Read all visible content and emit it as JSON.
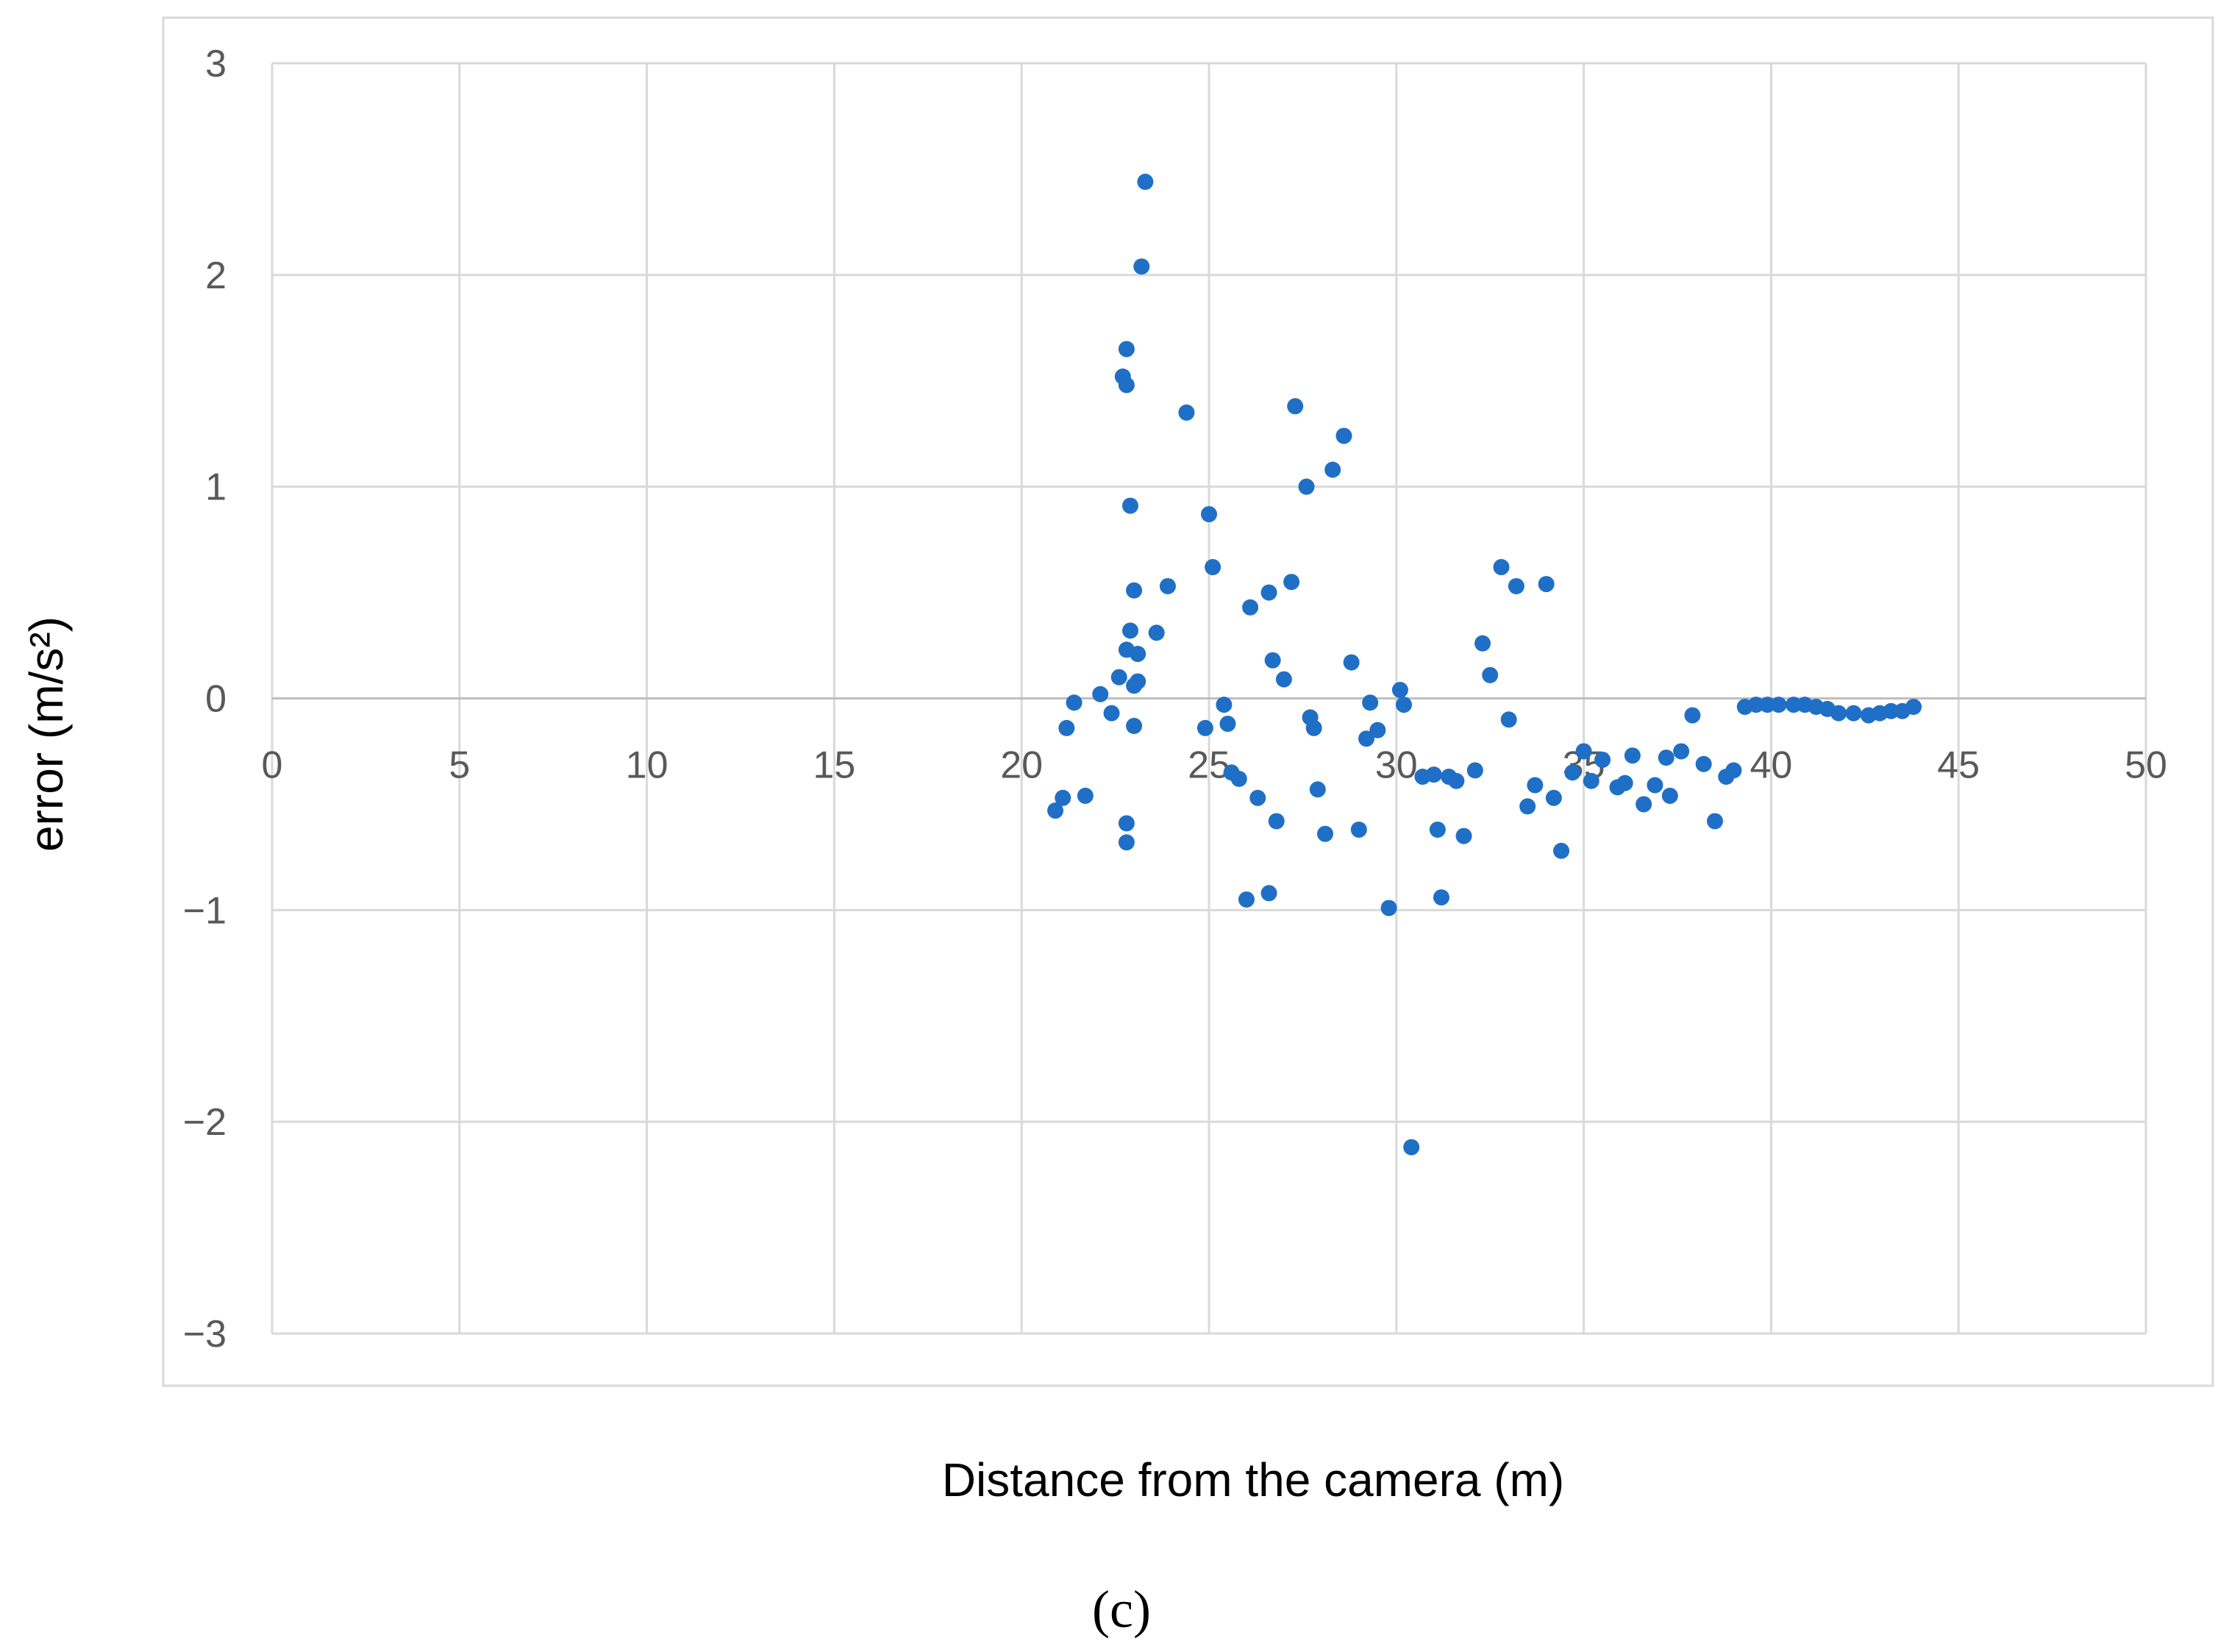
{
  "chart_data": {
    "type": "scatter",
    "xlabel": "Distance from the camera (m)",
    "ylabel": "error (m/s²)",
    "xlim": [
      0,
      50
    ],
    "ylim": [
      -3,
      3
    ],
    "x_ticks": [
      0,
      5,
      10,
      15,
      20,
      25,
      30,
      35,
      40,
      45,
      50
    ],
    "y_ticks": [
      3,
      2,
      1,
      0,
      -1,
      -2,
      -3
    ],
    "y_tick_labels": [
      "3",
      "2",
      "1",
      "0",
      "−1",
      "−2",
      "−3"
    ],
    "grid": true,
    "marker_color": "#1f6fc6",
    "series": [
      {
        "points": [
          [
            20.9,
            -0.53
          ],
          [
            21.1,
            -0.47
          ],
          [
            21.2,
            -0.14
          ],
          [
            21.4,
            -0.02
          ],
          [
            21.7,
            -0.46
          ],
          [
            22.1,
            0.02
          ],
          [
            22.4,
            -0.07
          ],
          [
            22.6,
            0.1
          ],
          [
            22.7,
            1.52
          ],
          [
            22.8,
            1.48
          ],
          [
            22.8,
            1.65
          ],
          [
            22.8,
            0.23
          ],
          [
            22.8,
            -0.59
          ],
          [
            22.8,
            -0.68
          ],
          [
            22.9,
            0.32
          ],
          [
            22.9,
            0.91
          ],
          [
            23.0,
            0.51
          ],
          [
            23.0,
            0.06
          ],
          [
            23.0,
            -0.13
          ],
          [
            23.1,
            0.08
          ],
          [
            23.1,
            0.21
          ],
          [
            23.2,
            2.04
          ],
          [
            23.3,
            2.44
          ],
          [
            23.6,
            0.31
          ],
          [
            23.9,
            0.53
          ],
          [
            24.4,
            1.35
          ],
          [
            24.9,
            -0.14
          ],
          [
            25.0,
            0.87
          ],
          [
            25.1,
            0.62
          ],
          [
            25.4,
            -0.03
          ],
          [
            25.5,
            -0.12
          ],
          [
            25.6,
            -0.35
          ],
          [
            25.8,
            -0.38
          ],
          [
            26.0,
            -0.95
          ],
          [
            26.1,
            0.43
          ],
          [
            26.3,
            -0.47
          ],
          [
            26.6,
            -0.92
          ],
          [
            26.6,
            0.5
          ],
          [
            26.7,
            0.18
          ],
          [
            26.8,
            -0.58
          ],
          [
            27.0,
            0.09
          ],
          [
            27.2,
            0.55
          ],
          [
            27.3,
            1.38
          ],
          [
            27.6,
            1.0
          ],
          [
            27.7,
            -0.09
          ],
          [
            27.8,
            -0.14
          ],
          [
            27.9,
            -0.43
          ],
          [
            28.1,
            -0.64
          ],
          [
            28.3,
            1.08
          ],
          [
            28.6,
            1.24
          ],
          [
            28.8,
            0.17
          ],
          [
            29.0,
            -0.62
          ],
          [
            29.2,
            -0.19
          ],
          [
            29.3,
            -0.02
          ],
          [
            29.5,
            -0.15
          ],
          [
            29.8,
            -0.99
          ],
          [
            30.1,
            0.04
          ],
          [
            30.2,
            -0.03
          ],
          [
            30.4,
            -2.12
          ],
          [
            30.7,
            -0.37
          ],
          [
            31.0,
            -0.36
          ],
          [
            31.1,
            -0.62
          ],
          [
            31.2,
            -0.94
          ],
          [
            31.4,
            -0.37
          ],
          [
            31.6,
            -0.39
          ],
          [
            31.8,
            -0.65
          ],
          [
            32.1,
            -0.34
          ],
          [
            32.3,
            0.26
          ],
          [
            32.5,
            0.11
          ],
          [
            32.8,
            0.62
          ],
          [
            33.0,
            -0.1
          ],
          [
            33.2,
            0.53
          ],
          [
            33.5,
            -0.51
          ],
          [
            33.7,
            -0.41
          ],
          [
            34.0,
            0.54
          ],
          [
            34.2,
            -0.47
          ],
          [
            34.4,
            -0.72
          ],
          [
            34.7,
            -0.35
          ],
          [
            35.0,
            -0.25
          ],
          [
            35.2,
            -0.39
          ],
          [
            35.5,
            -0.29
          ],
          [
            35.9,
            -0.42
          ],
          [
            36.1,
            -0.4
          ],
          [
            36.3,
            -0.27
          ],
          [
            36.6,
            -0.5
          ],
          [
            36.9,
            -0.41
          ],
          [
            37.2,
            -0.28
          ],
          [
            37.3,
            -0.46
          ],
          [
            37.6,
            -0.25
          ],
          [
            37.9,
            -0.08
          ],
          [
            38.2,
            -0.31
          ],
          [
            38.5,
            -0.58
          ],
          [
            38.8,
            -0.37
          ],
          [
            39.0,
            -0.34
          ],
          [
            39.3,
            -0.04
          ],
          [
            39.6,
            -0.03
          ],
          [
            39.9,
            -0.03
          ],
          [
            40.2,
            -0.03
          ],
          [
            40.6,
            -0.03
          ],
          [
            40.9,
            -0.03
          ],
          [
            41.2,
            -0.04
          ],
          [
            41.5,
            -0.05
          ],
          [
            41.8,
            -0.07
          ],
          [
            42.2,
            -0.07
          ],
          [
            42.6,
            -0.08
          ],
          [
            42.9,
            -0.07
          ],
          [
            43.2,
            -0.06
          ],
          [
            43.5,
            -0.06
          ],
          [
            43.8,
            -0.04
          ]
        ]
      }
    ]
  },
  "caption": "(c)"
}
